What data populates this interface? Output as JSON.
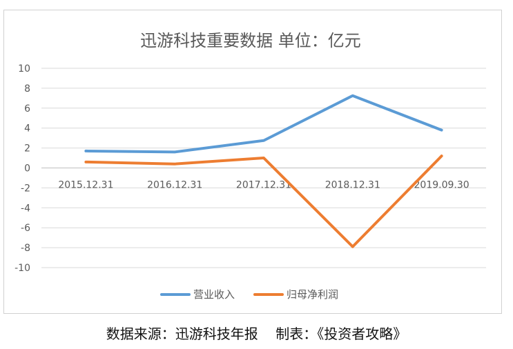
{
  "chart_data": {
    "type": "line",
    "title": "迅游科技重要数据  单位：亿元",
    "categories": [
      "2015.12.31",
      "2016.12.31",
      "2017.12.31",
      "2018.12.31",
      "2019.09.30"
    ],
    "series": [
      {
        "name": "营业收入",
        "values": [
          1.7,
          1.6,
          2.75,
          7.25,
          3.8
        ],
        "color": "#5b9bd5"
      },
      {
        "name": "归母净利润",
        "values": [
          0.6,
          0.4,
          1.0,
          -7.9,
          1.2
        ],
        "color": "#ed7d31"
      }
    ],
    "yticks": [
      10,
      8,
      6,
      4,
      2,
      0,
      -2,
      -4,
      -6,
      -8,
      -10
    ],
    "ylim": [
      -10,
      10
    ],
    "grid": true,
    "legend": "bottom"
  },
  "footer": {
    "source": "数据来源：迅游科技年报",
    "maker": "制表：《投资者攻略》"
  }
}
